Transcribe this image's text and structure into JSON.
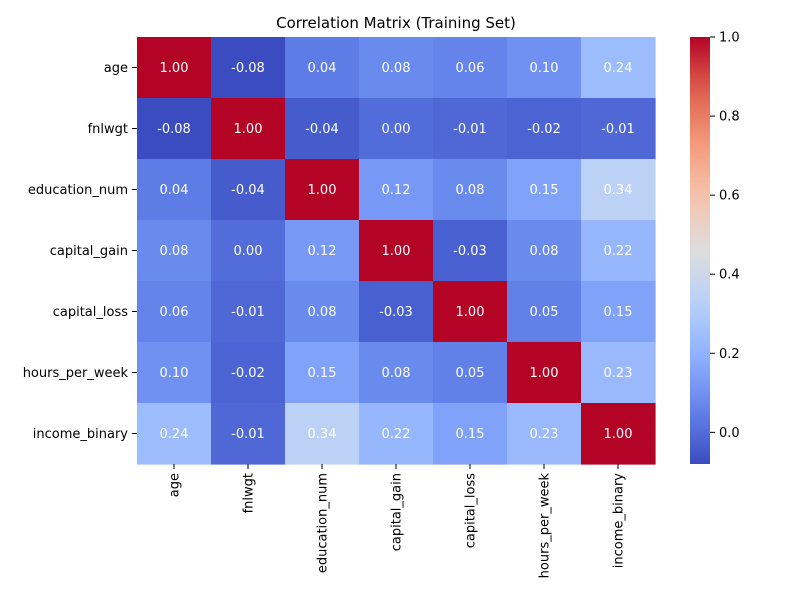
{
  "chart_data": {
    "type": "heatmap",
    "title": "Correlation Matrix (Training Set)",
    "rows": [
      "age",
      "fnlwgt",
      "education_num",
      "capital_gain",
      "capital_loss",
      "hours_per_week",
      "income_binary"
    ],
    "columns": [
      "age",
      "fnlwgt",
      "education_num",
      "capital_gain",
      "capital_loss",
      "hours_per_week",
      "income_binary"
    ],
    "values": [
      [
        1.0,
        -0.08,
        0.04,
        0.08,
        0.06,
        0.1,
        0.24
      ],
      [
        -0.08,
        1.0,
        -0.04,
        0.0,
        -0.01,
        -0.02,
        -0.01
      ],
      [
        0.04,
        -0.04,
        1.0,
        0.12,
        0.08,
        0.15,
        0.34
      ],
      [
        0.08,
        0.0,
        0.12,
        1.0,
        -0.03,
        0.08,
        0.22
      ],
      [
        0.06,
        -0.01,
        0.08,
        -0.03,
        1.0,
        0.05,
        0.15
      ],
      [
        0.1,
        -0.02,
        0.15,
        0.08,
        0.05,
        1.0,
        0.23
      ],
      [
        0.24,
        -0.01,
        0.34,
        0.22,
        0.15,
        0.23,
        1.0
      ]
    ],
    "value_format": "2 decimals",
    "colormap": "coolwarm",
    "color_range": [
      -0.08,
      1.0
    ],
    "colorbar": {
      "ticks": [
        "0.0",
        "0.2",
        "0.4",
        "0.6",
        "0.8",
        "1.0"
      ],
      "placement": "right"
    }
  }
}
